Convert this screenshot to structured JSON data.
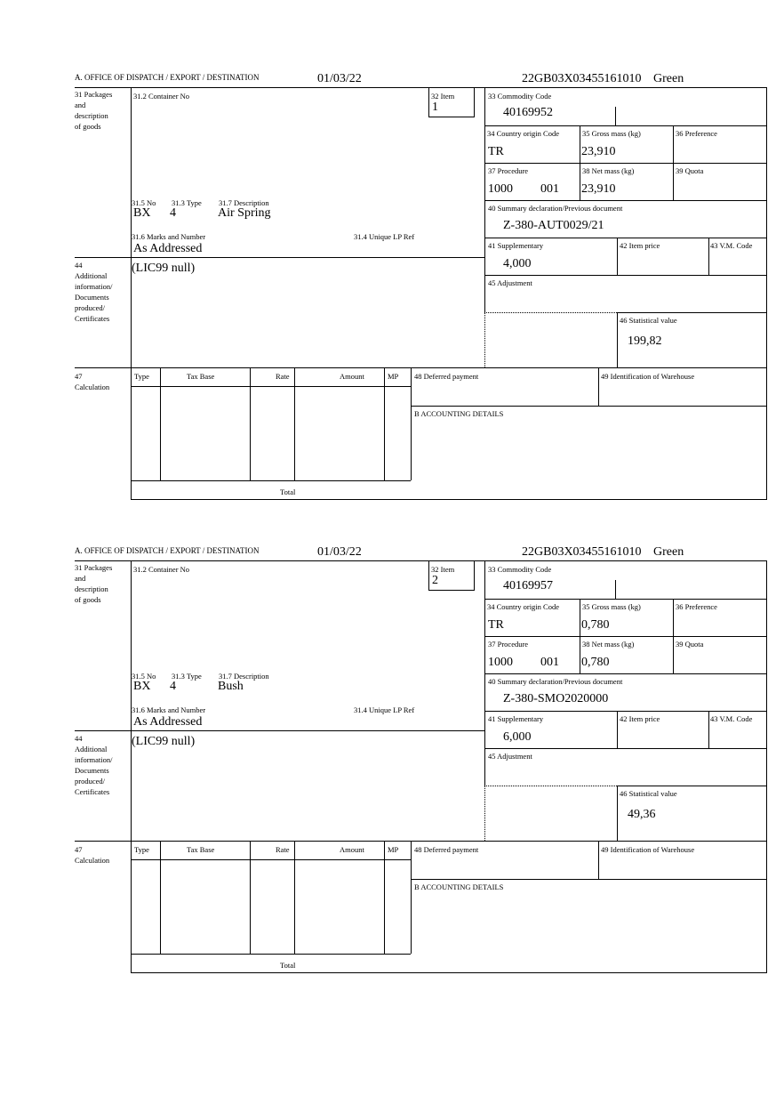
{
  "labels": {
    "office": "A. OFFICE OF DISPATCH / EXPORT / DESTINATION",
    "box31": [
      "31 Packages",
      "and",
      "description",
      "of goods"
    ],
    "container_no": "31.2 Container No",
    "item": "32 Item",
    "no": "31.5 No",
    "type": "31.3 Type",
    "description": "31.7 Description",
    "marks": "31.6 Marks and Number",
    "unique_lp_ref": "31.4 Unique LP Ref",
    "commodity_code": "33 Commodity Code",
    "country_origin": "34 Country origin Code",
    "gross_mass": "35 Gross mass (kg)",
    "preference": "36 Preference",
    "procedure": "37 Procedure",
    "net_mass": "38 Net mass (kg)",
    "quota": "39 Quota",
    "summary_declaration": "40 Summary declaration/Previous document",
    "supplementary": "41 Supplementary",
    "item_price": "42 Item price",
    "vm_code": "43 V.M. Code",
    "box44": [
      "44",
      "Additional",
      "information/",
      "Documents",
      "produced/",
      "Certificates"
    ],
    "adjustment": "45 Adjustment",
    "statistical_value": "46 Statistical value",
    "box47": [
      "47",
      "Calculation"
    ],
    "calc_headers": [
      "Type",
      "Tax Base",
      "Rate",
      "Amount",
      "MP"
    ],
    "total": "Total",
    "deferred_payment": "48 Deferred payment",
    "warehouse": "49 Identification of Warehouse",
    "accounting": "B ACCOUNTING DETAILS"
  },
  "forms": [
    {
      "date": "01/03/22",
      "reference": "22GB03X03455161010",
      "status": "Green",
      "item": "1",
      "no": "BX",
      "type": "4",
      "description": "Air Spring",
      "marks": "As Addressed",
      "additional_info": "(LIC99 null)",
      "commodity_code": "40169952",
      "country_origin": "TR",
      "gross_mass": "23,910",
      "procedure": "1000",
      "procedure_extra": "001",
      "net_mass": "23,910",
      "summary_declaration": "Z-380-AUT0029/21",
      "supplementary": "4,000",
      "statistical_value": "199,82"
    },
    {
      "date": "01/03/22",
      "reference": "22GB03X03455161010",
      "status": "Green",
      "item": "2",
      "no": "BX",
      "type": "4",
      "description": "Bush",
      "marks": "As Addressed",
      "additional_info": "(LIC99 null)",
      "commodity_code": "40169957",
      "country_origin": "TR",
      "gross_mass": "0,780",
      "procedure": "1000",
      "procedure_extra": "001",
      "net_mass": "0,780",
      "summary_declaration": "Z-380-SMO2020000",
      "supplementary": "6,000",
      "statistical_value": "49,36"
    }
  ]
}
